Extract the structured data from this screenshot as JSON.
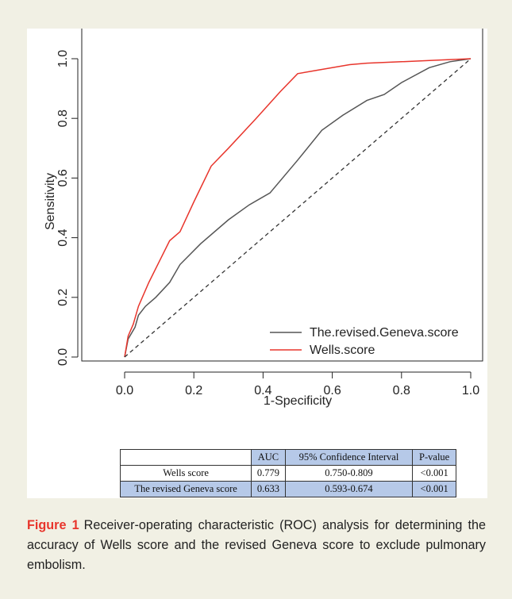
{
  "caption": {
    "label": "Figure 1",
    "text": "Receiver-operating characteristic (ROC) analysis for determining the accuracy of Wells score and the revised Geneva score to exclude pulmonary embolism."
  },
  "table": {
    "headers": [
      "",
      "AUC",
      "95% Confidence Interval",
      "P-value"
    ],
    "rows": [
      [
        "Wells score",
        "0.779",
        "0.750-0.809",
        "<0.001"
      ],
      [
        "The revised Geneva score",
        "0.633",
        "0.593-0.674",
        "<0.001"
      ]
    ]
  },
  "chart_data": {
    "type": "line",
    "title": "",
    "xlabel": "1-Specificity",
    "ylabel": "Sensitivity",
    "xlim": [
      0.0,
      1.0
    ],
    "ylim": [
      0.0,
      1.0
    ],
    "xticks": [
      "0.0",
      "0.2",
      "0.4",
      "0.6",
      "0.8",
      "1.0"
    ],
    "yticks": [
      "0.0",
      "0.2",
      "0.4",
      "0.6",
      "0.8",
      "1.0"
    ],
    "tick_values": [
      0,
      0.2,
      0.4,
      0.6,
      0.8,
      1.0
    ],
    "grid": false,
    "legend_position": "bottom-right",
    "series": [
      {
        "name": "The.revised.Geneva.score",
        "color": "#555555",
        "x": [
          0.0,
          0.01,
          0.03,
          0.04,
          0.06,
          0.09,
          0.13,
          0.16,
          0.22,
          0.3,
          0.36,
          0.42,
          0.5,
          0.57,
          0.63,
          0.7,
          0.75,
          0.8,
          0.88,
          0.94,
          1.0
        ],
        "y": [
          0.0,
          0.06,
          0.1,
          0.14,
          0.17,
          0.2,
          0.25,
          0.31,
          0.38,
          0.46,
          0.51,
          0.55,
          0.66,
          0.76,
          0.81,
          0.86,
          0.88,
          0.92,
          0.97,
          0.99,
          1.0
        ]
      },
      {
        "name": "Wells.score",
        "color": "#e8352c",
        "x": [
          0.0,
          0.01,
          0.025,
          0.04,
          0.07,
          0.1,
          0.13,
          0.16,
          0.2,
          0.25,
          0.3,
          0.38,
          0.45,
          0.5,
          0.55,
          0.65,
          0.7,
          0.8,
          0.9,
          1.0
        ],
        "y": [
          0.0,
          0.07,
          0.11,
          0.17,
          0.25,
          0.32,
          0.39,
          0.42,
          0.52,
          0.64,
          0.7,
          0.8,
          0.89,
          0.95,
          0.96,
          0.98,
          0.985,
          0.99,
          0.995,
          1.0
        ]
      },
      {
        "name": "",
        "color": "#333333",
        "x": [
          0.0,
          1.0
        ],
        "y": [
          0.0,
          1.0
        ]
      }
    ]
  },
  "colors": {
    "background": "#f1f0e4",
    "panel": "#ffffff",
    "accent": "#e8352c",
    "table_blue": "#b6c9e8"
  }
}
